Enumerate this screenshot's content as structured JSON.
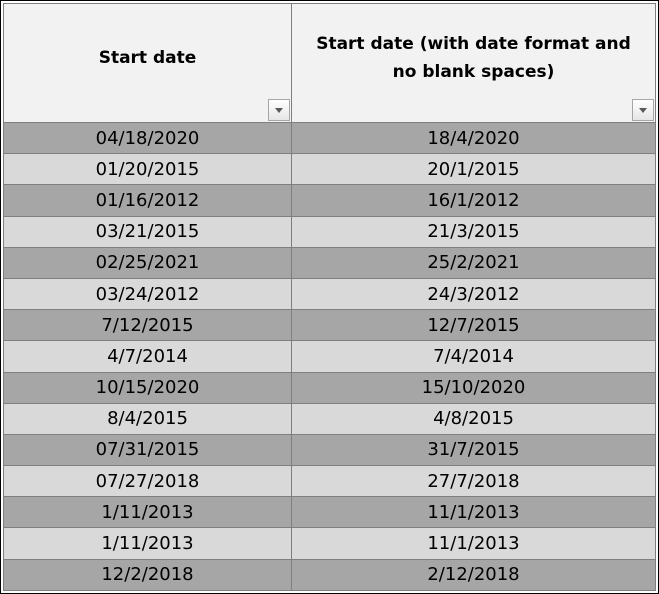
{
  "table": {
    "headers": [
      "Start date",
      "Start date (with date format and no blank spaces)"
    ],
    "rows": [
      [
        "04/18/2020",
        "18/4/2020"
      ],
      [
        "01/20/2015",
        "20/1/2015"
      ],
      [
        "01/16/2012",
        "16/1/2012"
      ],
      [
        "03/21/2015",
        "21/3/2015"
      ],
      [
        "02/25/2021",
        "25/2/2021"
      ],
      [
        "03/24/2012",
        "24/3/2012"
      ],
      [
        "7/12/2015",
        "12/7/2015"
      ],
      [
        "4/7/2014",
        "7/4/2014"
      ],
      [
        "10/15/2020",
        "15/10/2020"
      ],
      [
        "8/4/2015",
        "4/8/2015"
      ],
      [
        "07/31/2015",
        "31/7/2015"
      ],
      [
        "07/27/2018",
        "27/7/2018"
      ],
      [
        "1/11/2013",
        "11/1/2013"
      ],
      [
        "1/11/2013",
        "11/1/2013"
      ],
      [
        "12/2/2018",
        "2/12/2018"
      ]
    ]
  },
  "icons": {
    "filter": "dropdown-arrow-icon"
  },
  "colors": {
    "header_bg": "#f2f2f2",
    "row_dark": "#a6a6a6",
    "row_light": "#d9d9d9",
    "grid_line": "#7f7f7f"
  }
}
